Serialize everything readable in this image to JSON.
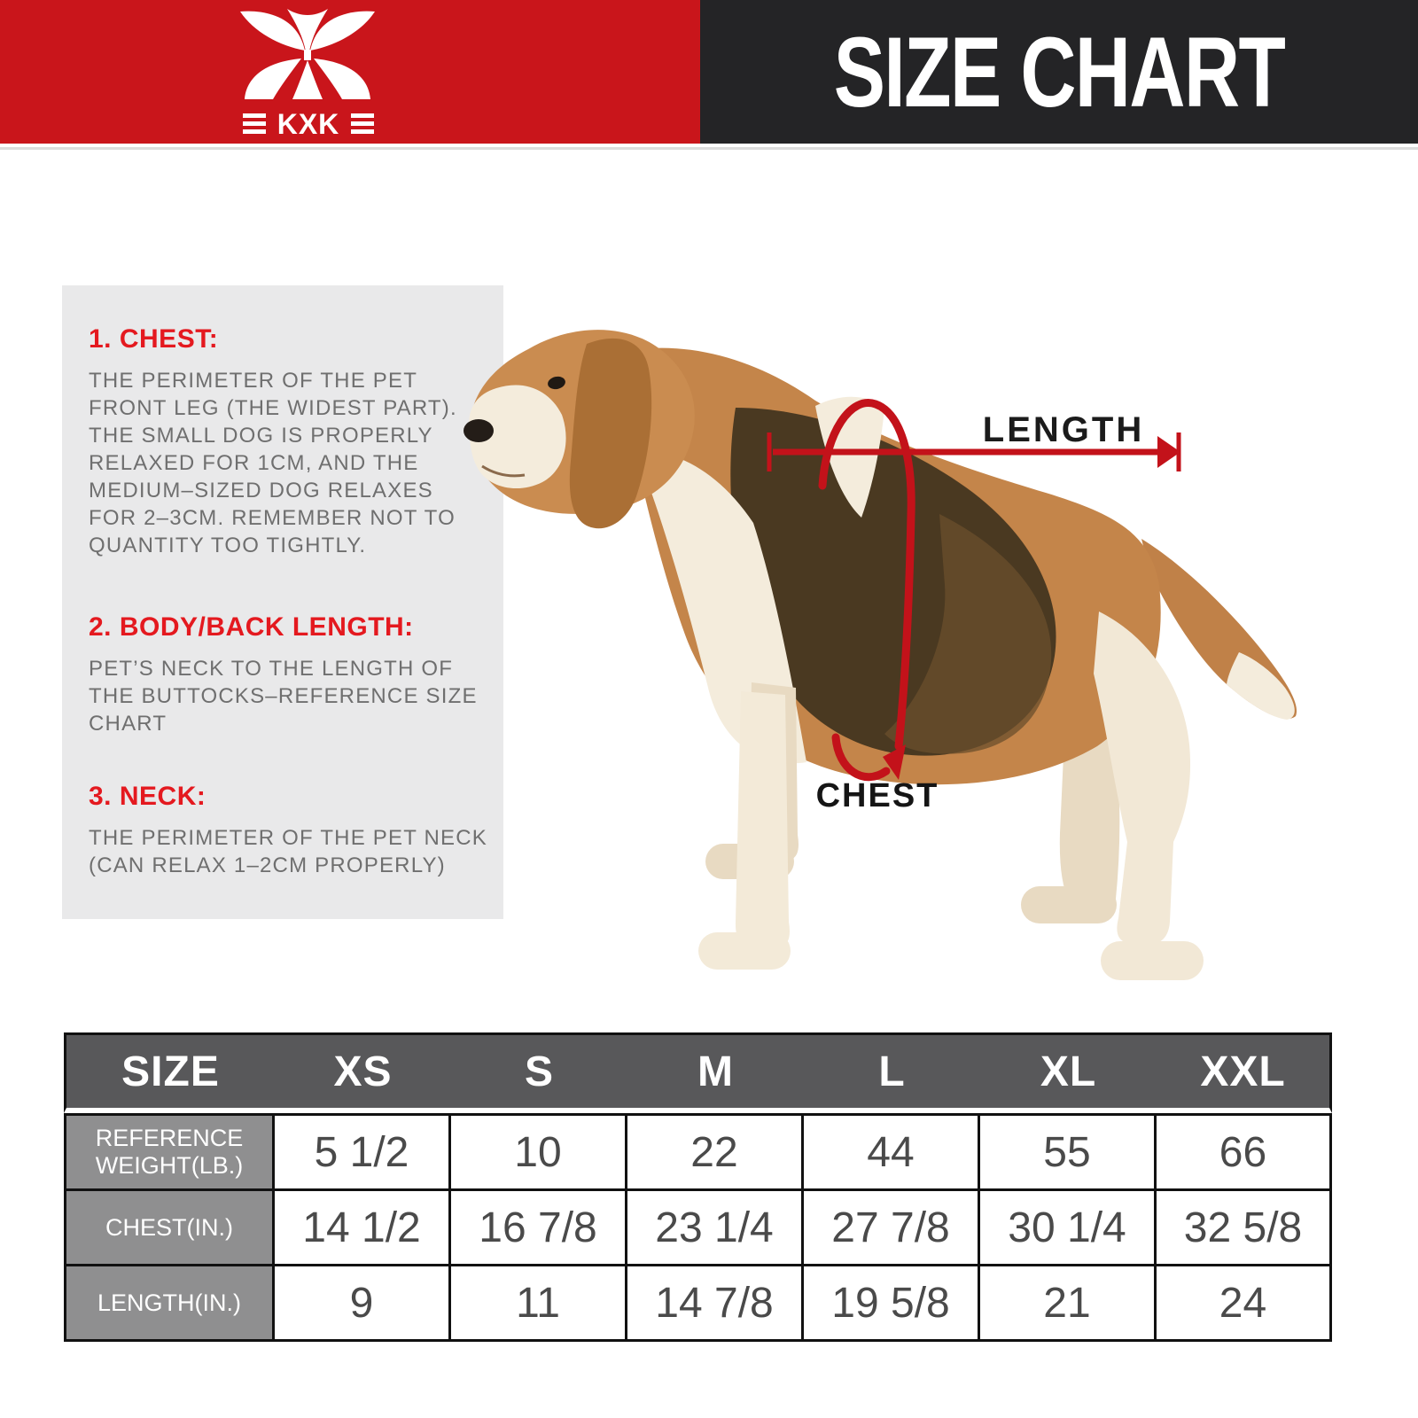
{
  "header": {
    "title": "SIZE CHART",
    "brand": "KXK"
  },
  "colors": {
    "brand_red": "#c9151b",
    "header_dark": "#242426",
    "annotation_red": "#c3121a",
    "heading_red": "#e4191f",
    "panel_gray": "#e9e9ea",
    "table_header_gray": "#58585a",
    "table_label_gray": "#8f8f90"
  },
  "panel": {
    "sections": [
      {
        "heading": "1. CHEST:",
        "body": "THE PERIMETER OF THE PET FRONT LEG (THE WIDEST PART). THE SMALL DOG IS PROPERLY RELAXED FOR 1CM, AND THE MEDIUM–SIZED DOG RELAXES FOR 2–3CM. REMEMBER NOT TO QUANTITY TOO TIGHTLY."
      },
      {
        "heading": "2. BODY/BACK LENGTH:",
        "body": "PET’S NECK TO THE LENGTH OF THE BUTTOCKS–REFERENCE SIZE CHART"
      },
      {
        "heading": "3. NECK:",
        "body": "THE PERIMETER OF THE PET NECK (CAN RELAX 1–2CM PROPERLY)"
      }
    ]
  },
  "diagram": {
    "length_label": "LENGTH",
    "chest_label": "CHEST"
  },
  "chart_data": {
    "type": "table",
    "columns": [
      "SIZE",
      "XS",
      "S",
      "M",
      "L",
      "XL",
      "XXL"
    ],
    "rows": [
      {
        "label": "REFERENCE WEIGHT(LB.)",
        "values": [
          "5 1/2",
          "10",
          "22",
          "44",
          "55",
          "66"
        ]
      },
      {
        "label": "CHEST(IN.)",
        "values": [
          "14 1/2",
          "16 7/8",
          "23 1/4",
          "27 7/8",
          "30 1/4",
          "32 5/8"
        ]
      },
      {
        "label": "LENGTH(IN.)",
        "values": [
          "9",
          "11",
          "14 7/8",
          "19 5/8",
          "21",
          "24"
        ]
      }
    ]
  }
}
